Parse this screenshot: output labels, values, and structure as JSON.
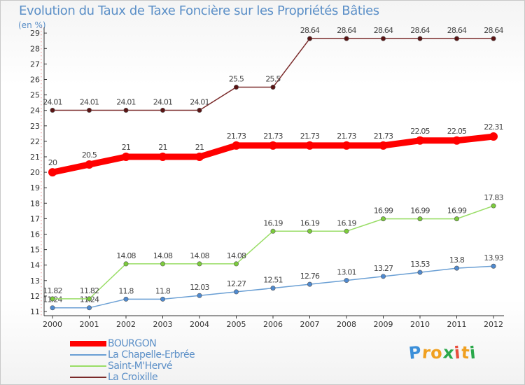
{
  "header": {
    "title": "Evolution du Taux de Taxe Foncière sur les Propriétés Bâties",
    "unit": "(en %)"
  },
  "logo": {
    "letters": [
      "P",
      "r",
      "o",
      "x",
      "i",
      "t",
      "i"
    ],
    "colors": [
      "#3b8fd9",
      "#f0a020",
      "#f0a020",
      "#2aa84a",
      "#e84f3c",
      "#f0a020",
      "#2aa84a"
    ]
  },
  "chart_data": {
    "type": "line",
    "title": "Evolution du Taux de Taxe Foncière sur les Propriétés Bâties",
    "ylabel": "(en %)",
    "xlabel": "",
    "x": [
      "2000",
      "2001",
      "2002",
      "2003",
      "2004",
      "2005",
      "2006",
      "2007",
      "2008",
      "2009",
      "2010",
      "2011",
      "2012"
    ],
    "ylim": [
      11,
      29
    ],
    "yticks": [
      11,
      12,
      13,
      14,
      15,
      16,
      17,
      18,
      19,
      20,
      21,
      22,
      23,
      24,
      25,
      26,
      27,
      28,
      29
    ],
    "grid": false,
    "legend_position": "bottom-left",
    "series": [
      {
        "name": "BOURGON",
        "color": "#ff0000",
        "emphasis": true,
        "values": [
          20,
          20.5,
          21,
          21,
          21,
          21.73,
          21.73,
          21.73,
          21.73,
          21.73,
          22.05,
          22.05,
          22.31
        ],
        "labels": [
          "20",
          "20.5",
          "21",
          "21",
          "21",
          "21.73",
          "21.73",
          "21.73",
          "21.73",
          "21.73",
          "22.05",
          "22.05",
          "22.31"
        ]
      },
      {
        "name": "La Chapelle-Erbrée",
        "color": "#6a9fd4",
        "marker_color": "#4f8ad0",
        "values": [
          11.24,
          11.24,
          11.8,
          11.8,
          12.03,
          12.27,
          12.51,
          12.76,
          13.01,
          13.27,
          13.53,
          13.8,
          13.93
        ],
        "labels": [
          "11.24",
          "11.24",
          "11.8",
          "11.8",
          "12.03",
          "12.27",
          "12.51",
          "12.76",
          "13.01",
          "13.27",
          "13.53",
          "13.8",
          "13.93"
        ]
      },
      {
        "name": "Saint-M'Hervé",
        "color": "#99dd66",
        "marker_color": "#7ccc3c",
        "values": [
          11.82,
          11.82,
          14.08,
          14.08,
          14.08,
          14.08,
          16.19,
          16.19,
          16.19,
          16.99,
          16.99,
          16.99,
          17.83
        ],
        "labels": [
          "11.82",
          "11.82",
          "14.08",
          "14.08",
          "14.08",
          "14.08",
          "16.19",
          "16.19",
          "16.19",
          "16.99",
          "16.99",
          "16.99",
          "17.83"
        ]
      },
      {
        "name": "La Croixille",
        "color": "#7a2a2a",
        "marker_color": "#5a1414",
        "values": [
          24.01,
          24.01,
          24.01,
          24.01,
          24.01,
          25.5,
          25.5,
          28.64,
          28.64,
          28.64,
          28.64,
          28.64,
          28.64
        ],
        "labels": [
          "24.01",
          "24.01",
          "24.01",
          "24.01",
          "24.01",
          "25.5",
          "25.5",
          "28.64",
          "28.64",
          "28.64",
          "28.64",
          "28.64",
          "28.64"
        ]
      }
    ]
  }
}
